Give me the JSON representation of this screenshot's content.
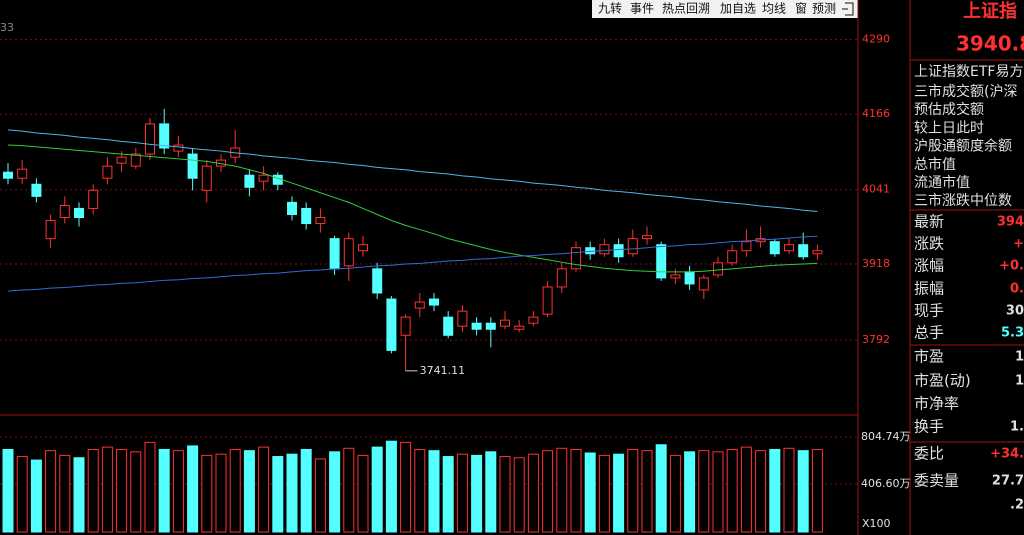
{
  "toolbar": [
    "九转",
    "事件",
    "热点回溯",
    "加自选",
    "均线",
    "窗",
    "预测"
  ],
  "corner_label": "33",
  "chart_data": {
    "type": "candlestick",
    "open": [
      4070,
      4060,
      4050,
      3960,
      3995,
      4010,
      4010,
      4060,
      4085,
      4080,
      4100,
      4150,
      4105,
      4100,
      4040,
      4080,
      4095,
      4065,
      4055,
      4065,
      4020,
      4010,
      3985,
      3960,
      3915,
      3940,
      3910,
      3860,
      3800,
      3845,
      3860,
      3830,
      3815,
      3820,
      3820,
      3815,
      3810,
      3820,
      3835,
      3880,
      3910,
      3945,
      3935,
      3950,
      3935,
      3960,
      3950,
      3895,
      3905,
      3875,
      3900,
      3920,
      3940,
      3955,
      3955,
      3940,
      3950,
      3935
    ],
    "close": [
      4060,
      4075,
      4030,
      3990,
      4015,
      3995,
      4040,
      4080,
      4095,
      4100,
      4150,
      4110,
      4115,
      4060,
      4080,
      4090,
      4110,
      4045,
      4065,
      4050,
      4000,
      3985,
      3995,
      3910,
      3960,
      3950,
      3870,
      3775,
      3830,
      3855,
      3850,
      3800,
      3840,
      3810,
      3810,
      3825,
      3815,
      3830,
      3880,
      3910,
      3945,
      3935,
      3950,
      3930,
      3960,
      3965,
      3895,
      3900,
      3885,
      3895,
      3920,
      3940,
      3955,
      3960,
      3935,
      3950,
      3930,
      3940
    ],
    "high": [
      4085,
      4090,
      4060,
      4000,
      4030,
      4020,
      4050,
      4095,
      4105,
      4110,
      4160,
      4175,
      4130,
      4110,
      4090,
      4100,
      4140,
      4075,
      4080,
      4070,
      4030,
      4020,
      4010,
      3965,
      3970,
      3965,
      3920,
      3865,
      3835,
      3870,
      3870,
      3840,
      3850,
      3830,
      3830,
      3840,
      3825,
      3840,
      3890,
      3920,
      3955,
      3955,
      3960,
      3960,
      3975,
      3980,
      3955,
      3910,
      3915,
      3900,
      3930,
      3950,
      3975,
      3980,
      3960,
      3960,
      3970,
      3950
    ],
    "low": [
      4050,
      4050,
      4020,
      3945,
      3985,
      3980,
      4000,
      4050,
      4070,
      4075,
      4090,
      4100,
      4095,
      4040,
      4020,
      4070,
      4085,
      4030,
      4040,
      4040,
      3990,
      3975,
      3970,
      3900,
      3890,
      3930,
      3860,
      3770,
      3741.11,
      3830,
      3840,
      3795,
      3805,
      3800,
      3780,
      3810,
      3805,
      3815,
      3830,
      3870,
      3905,
      3925,
      3930,
      3920,
      3930,
      3950,
      3890,
      3885,
      3875,
      3860,
      3895,
      3915,
      3930,
      3945,
      3930,
      3935,
      3925,
      3925
    ],
    "lines": [
      {
        "color": "#4fb3e8",
        "values": [
          4140,
          4138,
          4135,
          4133,
          4131,
          4128,
          4126,
          4124,
          4121,
          4119,
          4116,
          4114,
          4112,
          4109,
          4107,
          4105,
          4102,
          4100,
          4097,
          4095,
          4093,
          4090,
          4088,
          4086,
          4083,
          4081,
          4078,
          4076,
          4074,
          4071,
          4069,
          4067,
          4064,
          4062,
          4059,
          4057,
          4055,
          4052,
          4050,
          4048,
          4045,
          4043,
          4040,
          4038,
          4036,
          4033,
          4031,
          4029,
          4026,
          4024,
          4021,
          4019,
          4017,
          4014,
          4012,
          4010,
          4007,
          4005
        ]
      },
      {
        "color": "#2ecc40",
        "values": [
          4115,
          4114,
          4112,
          4110,
          4108,
          4106,
          4104,
          4102,
          4100,
          4098,
          4096,
          4094,
          4092,
          4090,
          4088,
          4084,
          4080,
          4074,
          4068,
          4060,
          4052,
          4044,
          4036,
          4028,
          4020,
          4010,
          4000,
          3990,
          3982,
          3975,
          3968,
          3960,
          3954,
          3948,
          3942,
          3937,
          3933,
          3929,
          3925,
          3921,
          3917,
          3914,
          3911,
          3909,
          3907,
          3906,
          3905,
          3905,
          3905,
          3906,
          3908,
          3910,
          3912,
          3914,
          3916,
          3917,
          3918,
          3919
        ]
      },
      {
        "color": "#2f6fd0",
        "values": [
          3873,
          3875,
          3876,
          3878,
          3879,
          3881,
          3883,
          3884,
          3886,
          3887,
          3889,
          3891,
          3892,
          3894,
          3895,
          3897,
          3899,
          3900,
          3902,
          3903,
          3905,
          3907,
          3908,
          3910,
          3911,
          3913,
          3915,
          3916,
          3918,
          3919,
          3921,
          3923,
          3924,
          3926,
          3927,
          3929,
          3931,
          3932,
          3934,
          3935,
          3937,
          3939,
          3940,
          3942,
          3943,
          3945,
          3947,
          3948,
          3950,
          3951,
          3953,
          3955,
          3956,
          3958,
          3959,
          3961,
          3963,
          3964
        ]
      }
    ],
    "up_color": "#ff3030",
    "down_color": "#54ffff",
    "ylim": [
      3668,
      4322
    ],
    "yticks": [
      4290,
      4166,
      4041,
      3918,
      3792
    ],
    "low_label": "3741.11",
    "volume": [
      700,
      640,
      610,
      690,
      650,
      630,
      700,
      720,
      700,
      680,
      760,
      700,
      690,
      730,
      650,
      660,
      700,
      690,
      720,
      640,
      660,
      700,
      620,
      680,
      710,
      650,
      720,
      770,
      760,
      700,
      690,
      640,
      660,
      650,
      680,
      640,
      630,
      660,
      690,
      710,
      700,
      670,
      650,
      660,
      700,
      690,
      740,
      650,
      680,
      690,
      680,
      700,
      720,
      690,
      700,
      710,
      690,
      700
    ],
    "volume_ylim": [
      0,
      950
    ],
    "volume_yticks": [
      {
        "value": 804.74,
        "label": "804.74万"
      },
      {
        "value": 406.6,
        "label": "406.60万"
      }
    ],
    "volume_unit": "X100"
  },
  "quote_panel": {
    "name": "上证指",
    "price": "3940.8",
    "etf": "上证指数ETF易方",
    "info": [
      "三市成交额(沪深",
      "预估成交额",
      "较上日此时",
      "沪股通额度余额",
      "总市值",
      "流通市值",
      "三市涨跌中位数"
    ],
    "rows": [
      {
        "label": "最新",
        "value": "394"
      },
      {
        "label": "涨跌",
        "value": "+"
      },
      {
        "label": "涨幅",
        "value": "+0."
      },
      {
        "label": "振幅",
        "value": "0."
      },
      {
        "label": "现手",
        "value": "30"
      },
      {
        "label": "总手",
        "value": "5.3"
      },
      {
        "label": "市盈",
        "value": "1"
      },
      {
        "label": "市盈(动)",
        "value": "1"
      },
      {
        "label": "市净率"
      },
      {
        "label": "换手",
        "value": "1."
      },
      {
        "label": "委比",
        "value": "+34."
      },
      {
        "label": "委卖量",
        "value": "27.7"
      },
      {
        "value": ".2"
      }
    ]
  }
}
